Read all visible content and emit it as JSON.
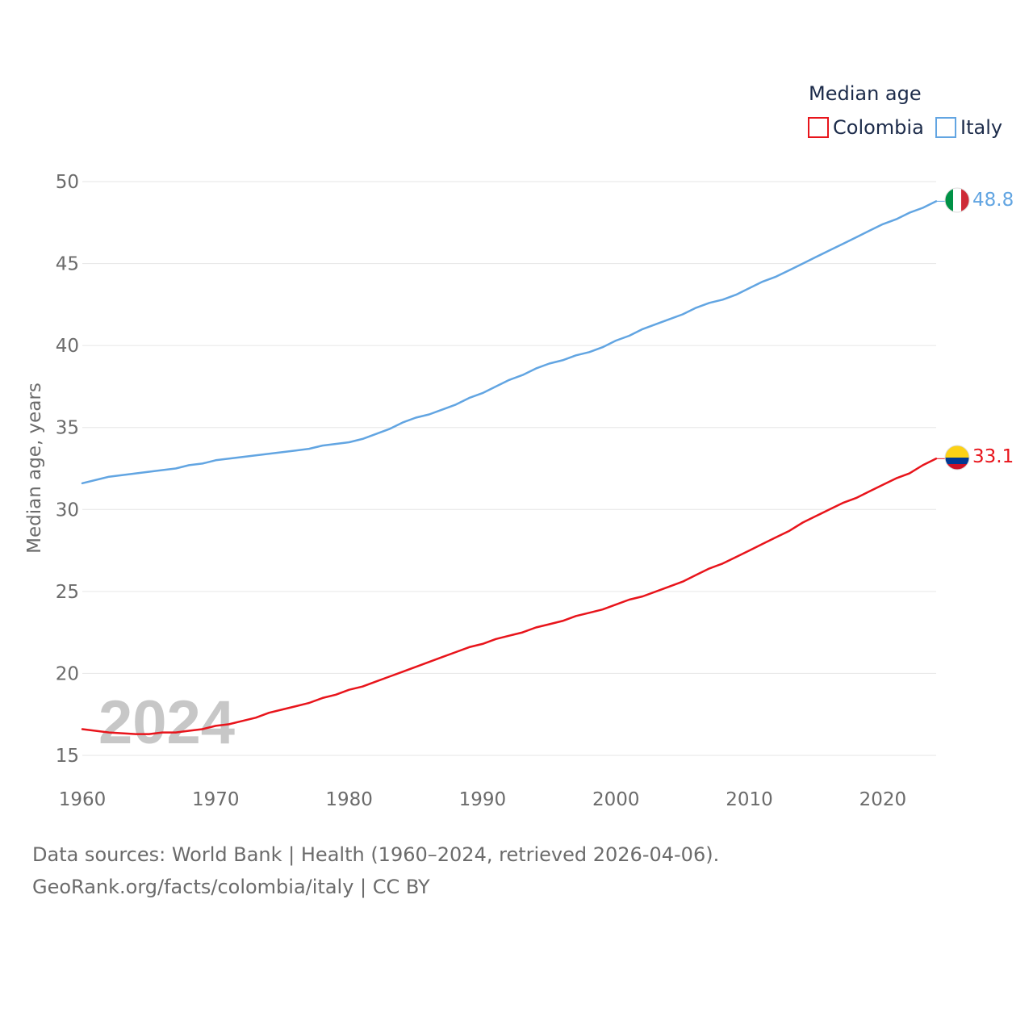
{
  "chart_data": {
    "type": "line",
    "ylabel": "Median age, years",
    "legend_title": "Median age",
    "legend_position": "top-right",
    "watermark_year": "2024",
    "xlim": [
      1960,
      2024
    ],
    "ylim": [
      15,
      50
    ],
    "x_ticks": [
      1960,
      1970,
      1980,
      1990,
      2000,
      2010,
      2020
    ],
    "y_ticks": [
      15,
      20,
      25,
      30,
      35,
      40,
      45,
      50
    ],
    "grid": true,
    "series": [
      {
        "name": "Colombia",
        "color": "#e8141b",
        "end_label": "33.1",
        "flag": "colombia-flag",
        "x": [
          1960,
          1962,
          1964,
          1965,
          1966,
          1967,
          1968,
          1969,
          1970,
          1971,
          1972,
          1973,
          1974,
          1975,
          1976,
          1977,
          1978,
          1979,
          1980,
          1981,
          1982,
          1983,
          1984,
          1985,
          1986,
          1987,
          1988,
          1989,
          1990,
          1991,
          1992,
          1993,
          1994,
          1995,
          1996,
          1997,
          1998,
          1999,
          2000,
          2001,
          2002,
          2003,
          2004,
          2005,
          2006,
          2007,
          2008,
          2009,
          2010,
          2011,
          2012,
          2013,
          2014,
          2015,
          2016,
          2017,
          2018,
          2019,
          2020,
          2021,
          2022,
          2023,
          2024
        ],
        "values": [
          16.6,
          16.4,
          16.3,
          16.3,
          16.4,
          16.4,
          16.5,
          16.6,
          16.8,
          16.9,
          17.1,
          17.3,
          17.6,
          17.8,
          18.0,
          18.2,
          18.5,
          18.7,
          19.0,
          19.2,
          19.5,
          19.8,
          20.1,
          20.4,
          20.7,
          21.0,
          21.3,
          21.6,
          21.8,
          22.1,
          22.3,
          22.5,
          22.8,
          23.0,
          23.2,
          23.5,
          23.7,
          23.9,
          24.2,
          24.5,
          24.7,
          25.0,
          25.3,
          25.6,
          26.0,
          26.4,
          26.7,
          27.1,
          27.5,
          27.9,
          28.3,
          28.7,
          29.2,
          29.6,
          30.0,
          30.4,
          30.7,
          31.1,
          31.5,
          31.9,
          32.2,
          32.7,
          33.1
        ]
      },
      {
        "name": "Italy",
        "color": "#62a5e2",
        "end_label": "48.8",
        "flag": "italy-flag",
        "x": [
          1960,
          1962,
          1964,
          1966,
          1967,
          1968,
          1969,
          1970,
          1972,
          1974,
          1976,
          1977,
          1978,
          1980,
          1981,
          1982,
          1983,
          1984,
          1985,
          1986,
          1987,
          1988,
          1989,
          1990,
          1991,
          1992,
          1993,
          1994,
          1995,
          1996,
          1997,
          1998,
          1999,
          2000,
          2001,
          2002,
          2003,
          2004,
          2005,
          2006,
          2007,
          2008,
          2009,
          2010,
          2011,
          2012,
          2013,
          2014,
          2015,
          2016,
          2017,
          2018,
          2019,
          2020,
          2021,
          2022,
          2023,
          2024
        ],
        "values": [
          31.6,
          32.0,
          32.2,
          32.4,
          32.5,
          32.7,
          32.8,
          33.0,
          33.2,
          33.4,
          33.6,
          33.7,
          33.9,
          34.1,
          34.3,
          34.6,
          34.9,
          35.3,
          35.6,
          35.8,
          36.1,
          36.4,
          36.8,
          37.1,
          37.5,
          37.9,
          38.2,
          38.6,
          38.9,
          39.1,
          39.4,
          39.6,
          39.9,
          40.3,
          40.6,
          41.0,
          41.3,
          41.6,
          41.9,
          42.3,
          42.6,
          42.8,
          43.1,
          43.5,
          43.9,
          44.2,
          44.6,
          45.0,
          45.4,
          45.8,
          46.2,
          46.6,
          47.0,
          47.4,
          47.7,
          48.1,
          48.4,
          48.8
        ]
      }
    ]
  },
  "sources": {
    "line1": "Data sources: World Bank | Health (1960–2024, retrieved 2026-04-06).",
    "line2": "GeoRank.org/facts/colombia/italy | CC BY"
  }
}
